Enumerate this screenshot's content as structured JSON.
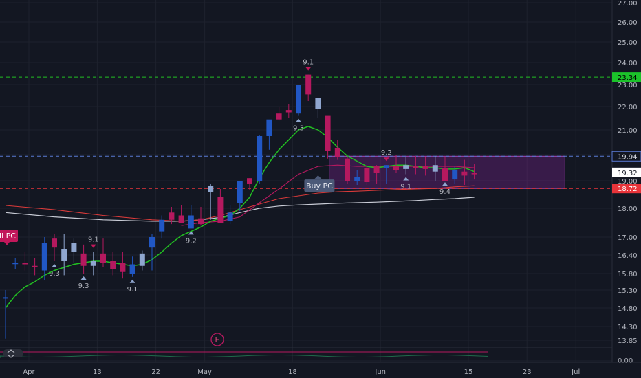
{
  "chart_data": {
    "type": "candlestick",
    "title": "",
    "ylim": [
      13.55,
      27.3
    ],
    "y_ticks": [
      "27.00",
      "26.00",
      "25.00",
      "24.00",
      "23.00",
      "22.00",
      "21.00",
      "20.00",
      "19.00",
      "18.00",
      "17.00",
      "16.40",
      "15.80",
      "15.30",
      "14.80",
      "14.30",
      "13.85"
    ],
    "y_tick_values": [
      27.0,
      26.0,
      25.0,
      24.0,
      23.0,
      22.0,
      21.0,
      20.0,
      19.0,
      18.0,
      17.0,
      16.4,
      15.8,
      15.3,
      14.8,
      14.3,
      13.85
    ],
    "x_ticks": [
      "Apr",
      "13",
      "22",
      "May",
      "18",
      "Jun",
      "15",
      "23",
      "Jul"
    ],
    "x_tick_positions": [
      0,
      7,
      13,
      18,
      27,
      36,
      45,
      51,
      56
    ],
    "candles": [
      {
        "i": 0,
        "o": 15.1,
        "h": 15.3,
        "l": 13.9,
        "c": 15.1,
        "color": "blue"
      },
      {
        "i": 1,
        "o": 16.15,
        "h": 16.3,
        "l": 15.95,
        "c": 16.15,
        "color": "blue"
      },
      {
        "i": 2,
        "o": 16.1,
        "h": 16.5,
        "l": 15.9,
        "c": 16.15,
        "color": "pink"
      },
      {
        "i": 3,
        "o": 16.05,
        "h": 16.3,
        "l": 15.75,
        "c": 16.0,
        "color": "pink"
      },
      {
        "i": 4,
        "o": 15.9,
        "h": 17.0,
        "l": 15.6,
        "c": 16.8,
        "color": "blue"
      },
      {
        "i": 5,
        "o": 16.95,
        "h": 17.1,
        "l": 16.2,
        "c": 16.65,
        "color": "pink"
      },
      {
        "i": 6,
        "o": 16.2,
        "h": 17.1,
        "l": 15.75,
        "c": 16.6,
        "color": "lightblue"
      },
      {
        "i": 7,
        "o": 16.5,
        "h": 16.95,
        "l": 16.15,
        "c": 16.8,
        "color": "lightblue"
      },
      {
        "i": 8,
        "o": 16.45,
        "h": 16.75,
        "l": 15.8,
        "c": 16.05,
        "color": "pink"
      },
      {
        "i": 9,
        "o": 16.2,
        "h": 16.5,
        "l": 15.75,
        "c": 16.05,
        "color": "lightblue"
      },
      {
        "i": 10,
        "o": 16.45,
        "h": 16.95,
        "l": 16.0,
        "c": 16.15,
        "color": "pink"
      },
      {
        "i": 11,
        "o": 16.2,
        "h": 16.5,
        "l": 15.75,
        "c": 15.95,
        "color": "pink"
      },
      {
        "i": 12,
        "o": 16.15,
        "h": 16.5,
        "l": 15.65,
        "c": 15.85,
        "color": "pink"
      },
      {
        "i": 13,
        "o": 15.8,
        "h": 16.35,
        "l": 15.7,
        "c": 16.1,
        "color": "blue"
      },
      {
        "i": 14,
        "o": 16.05,
        "h": 16.55,
        "l": 15.9,
        "c": 16.45,
        "color": "lightblue"
      },
      {
        "i": 15,
        "o": 16.65,
        "h": 17.1,
        "l": 15.9,
        "c": 17.0,
        "color": "blue"
      },
      {
        "i": 16,
        "o": 17.2,
        "h": 17.75,
        "l": 16.95,
        "c": 17.6,
        "color": "blue"
      },
      {
        "i": 17,
        "o": 17.6,
        "h": 18.05,
        "l": 17.45,
        "c": 17.85,
        "color": "pink"
      },
      {
        "i": 18,
        "o": 17.75,
        "h": 18.1,
        "l": 17.5,
        "c": 17.5,
        "color": "pink"
      },
      {
        "i": 19,
        "o": 17.3,
        "h": 18.1,
        "l": 17.3,
        "c": 17.75,
        "color": "blue"
      },
      {
        "i": 20,
        "o": 17.65,
        "h": 18.05,
        "l": 17.4,
        "c": 17.45,
        "color": "pink"
      },
      {
        "i": 21,
        "o": 18.8,
        "h": 18.9,
        "l": 17.6,
        "c": 18.6,
        "color": "lightblue"
      },
      {
        "i": 22,
        "o": 18.4,
        "h": 18.7,
        "l": 17.5,
        "c": 17.5,
        "color": "pink"
      },
      {
        "i": 23,
        "o": 17.55,
        "h": 18.1,
        "l": 17.45,
        "c": 17.85,
        "color": "blue"
      },
      {
        "i": 24,
        "o": 18.2,
        "h": 19.0,
        "l": 17.9,
        "c": 19.0,
        "color": "blue"
      },
      {
        "i": 25,
        "o": 18.9,
        "h": 19.1,
        "l": 18.65,
        "c": 19.1,
        "color": "pink"
      },
      {
        "i": 26,
        "o": 19.0,
        "h": 20.8,
        "l": 18.9,
        "c": 20.75,
        "color": "blue"
      },
      {
        "i": 27,
        "o": 20.75,
        "h": 21.4,
        "l": 20.2,
        "c": 21.45,
        "color": "blue"
      },
      {
        "i": 28,
        "o": 21.45,
        "h": 22.0,
        "l": 21.4,
        "c": 21.7,
        "color": "pink"
      },
      {
        "i": 29,
        "o": 21.75,
        "h": 22.1,
        "l": 21.5,
        "c": 21.85,
        "color": "pink"
      },
      {
        "i": 30,
        "o": 21.7,
        "h": 22.9,
        "l": 21.6,
        "c": 23.0,
        "color": "blue"
      },
      {
        "i": 31,
        "o": 23.45,
        "h": 23.45,
        "l": 22.25,
        "c": 22.55,
        "color": "pink"
      },
      {
        "i": 32,
        "o": 21.9,
        "h": 22.4,
        "l": 21.5,
        "c": 22.4,
        "color": "lightblue"
      },
      {
        "i": 33,
        "o": 21.6,
        "h": 21.55,
        "l": 19.85,
        "c": 20.15,
        "color": "pink"
      },
      {
        "i": 34,
        "o": 20.25,
        "h": 20.6,
        "l": 19.8,
        "c": 19.9,
        "color": "pink"
      },
      {
        "i": 35,
        "o": 19.85,
        "h": 19.9,
        "l": 18.9,
        "c": 19.0,
        "color": "pink"
      },
      {
        "i": 36,
        "o": 19.0,
        "h": 19.4,
        "l": 18.85,
        "c": 19.15,
        "color": "blue"
      },
      {
        "i": 37,
        "o": 19.5,
        "h": 19.6,
        "l": 18.85,
        "c": 18.95,
        "color": "pink"
      },
      {
        "i": 38,
        "o": 19.55,
        "h": 19.6,
        "l": 18.9,
        "c": 19.3,
        "color": "pink"
      },
      {
        "i": 39,
        "o": 19.5,
        "h": 19.6,
        "l": 18.9,
        "c": 19.6,
        "color": "blue"
      },
      {
        "i": 40,
        "o": 19.55,
        "h": 20.0,
        "l": 19.3,
        "c": 19.4,
        "color": "pink"
      },
      {
        "i": 41,
        "o": 19.45,
        "h": 19.9,
        "l": 19.25,
        "c": 19.6,
        "color": "lightblue"
      },
      {
        "i": 42,
        "o": 19.55,
        "h": 19.95,
        "l": 19.25,
        "c": 19.55,
        "color": "pink"
      },
      {
        "i": 43,
        "o": 19.55,
        "h": 19.9,
        "l": 19.2,
        "c": 19.45,
        "color": "pink"
      },
      {
        "i": 44,
        "o": 19.35,
        "h": 19.95,
        "l": 19.0,
        "c": 19.6,
        "color": "lightblue"
      },
      {
        "i": 45,
        "o": 19.5,
        "h": 19.9,
        "l": 19.05,
        "c": 19.0,
        "color": "pink"
      },
      {
        "i": 46,
        "o": 19.05,
        "h": 19.55,
        "l": 18.9,
        "c": 19.4,
        "color": "blue"
      },
      {
        "i": 47,
        "o": 19.35,
        "h": 19.8,
        "l": 18.85,
        "c": 19.2,
        "color": "pink"
      },
      {
        "i": 48,
        "o": 19.3,
        "h": 19.65,
        "l": 19.05,
        "c": 19.25,
        "color": "pink"
      }
    ],
    "ma_green": [
      [
        0,
        14.8
      ],
      [
        1,
        15.15
      ],
      [
        2,
        15.4
      ],
      [
        3,
        15.55
      ],
      [
        4,
        15.75
      ],
      [
        5,
        15.9
      ],
      [
        6,
        16.0
      ],
      [
        7,
        16.1
      ],
      [
        8,
        16.15
      ],
      [
        9,
        16.2
      ],
      [
        10,
        16.2
      ],
      [
        11,
        16.15
      ],
      [
        12,
        16.1
      ],
      [
        13,
        16.05
      ],
      [
        14,
        16.1
      ],
      [
        15,
        16.25
      ],
      [
        16,
        16.5
      ],
      [
        17,
        16.8
      ],
      [
        18,
        17.05
      ],
      [
        19,
        17.2
      ],
      [
        20,
        17.35
      ],
      [
        21,
        17.55
      ],
      [
        22,
        17.65
      ],
      [
        23,
        17.75
      ],
      [
        24,
        18.0
      ],
      [
        25,
        18.4
      ],
      [
        26,
        19.1
      ],
      [
        27,
        19.7
      ],
      [
        28,
        20.2
      ],
      [
        29,
        20.6
      ],
      [
        30,
        21.0
      ],
      [
        31,
        21.15
      ],
      [
        32,
        21.0
      ],
      [
        33,
        20.7
      ],
      [
        34,
        20.3
      ],
      [
        35,
        19.95
      ],
      [
        36,
        19.75
      ],
      [
        37,
        19.55
      ],
      [
        38,
        19.5
      ],
      [
        39,
        19.55
      ],
      [
        40,
        19.6
      ],
      [
        41,
        19.6
      ],
      [
        42,
        19.55
      ],
      [
        43,
        19.5
      ],
      [
        44,
        19.5
      ],
      [
        45,
        19.45
      ],
      [
        46,
        19.45
      ],
      [
        47,
        19.5
      ],
      [
        48,
        19.35
      ]
    ],
    "ma_pink": [
      [
        18,
        17.4
      ],
      [
        20,
        17.5
      ],
      [
        22,
        17.55
      ],
      [
        24,
        17.7
      ],
      [
        26,
        18.2
      ],
      [
        28,
        18.7
      ],
      [
        30,
        19.25
      ],
      [
        32,
        19.55
      ],
      [
        34,
        19.6
      ],
      [
        36,
        19.55
      ],
      [
        38,
        19.55
      ],
      [
        40,
        19.55
      ],
      [
        42,
        19.55
      ],
      [
        44,
        19.55
      ],
      [
        46,
        19.55
      ],
      [
        48,
        19.5
      ]
    ],
    "ma_red": [
      [
        0,
        18.1
      ],
      [
        5,
        17.95
      ],
      [
        10,
        17.75
      ],
      [
        15,
        17.6
      ],
      [
        18,
        17.55
      ],
      [
        20,
        17.6
      ],
      [
        22,
        17.75
      ],
      [
        24,
        17.95
      ],
      [
        26,
        18.15
      ],
      [
        28,
        18.35
      ],
      [
        30,
        18.45
      ],
      [
        32,
        18.55
      ],
      [
        34,
        18.6
      ],
      [
        36,
        18.62
      ],
      [
        38,
        18.65
      ],
      [
        40,
        18.68
      ],
      [
        42,
        18.7
      ],
      [
        44,
        18.72
      ],
      [
        46,
        18.78
      ],
      [
        48,
        18.82
      ]
    ],
    "ma_white": [
      [
        0,
        17.85
      ],
      [
        5,
        17.7
      ],
      [
        10,
        17.6
      ],
      [
        15,
        17.55
      ],
      [
        18,
        17.55
      ],
      [
        20,
        17.6
      ],
      [
        22,
        17.68
      ],
      [
        24,
        17.85
      ],
      [
        26,
        18.0
      ],
      [
        28,
        18.08
      ],
      [
        30,
        18.12
      ],
      [
        32,
        18.15
      ],
      [
        34,
        18.18
      ],
      [
        36,
        18.2
      ],
      [
        38,
        18.22
      ],
      [
        40,
        18.25
      ],
      [
        42,
        18.28
      ],
      [
        44,
        18.32
      ],
      [
        46,
        18.35
      ],
      [
        48,
        18.4
      ]
    ],
    "hlines": [
      {
        "value": 23.34,
        "label": "23.34",
        "color": "#22c022",
        "bg": "#1bc22a",
        "fg": "#000000"
      },
      {
        "value": 19.94,
        "label": "19.94",
        "color": "#5b7bd5",
        "bg": "#131722",
        "fg": "#d1d4dc"
      },
      {
        "value": 18.72,
        "label": "18.72",
        "color": "#e8343a",
        "bg": "#e8343a",
        "fg": "#ffffff"
      }
    ],
    "current_price": {
      "value": 19.32,
      "label": "19.32"
    },
    "zone": {
      "x0": 33,
      "x1": 57,
      "y0": 18.72,
      "y1": 19.94
    },
    "annotations": [
      {
        "text": "9.1",
        "i": 9,
        "side": "above",
        "arrow": "down"
      },
      {
        "text": "9.3",
        "i": 5,
        "side": "below",
        "arrow": "up"
      },
      {
        "text": "9.3",
        "i": 8,
        "side": "below",
        "arrow": "up"
      },
      {
        "text": "9.1",
        "i": 13,
        "side": "below",
        "arrow": "up"
      },
      {
        "text": "9.2",
        "i": 19,
        "side": "below",
        "arrow": "up"
      },
      {
        "text": "9.1",
        "i": 31,
        "side": "above",
        "arrow": "down"
      },
      {
        "text": "9.3",
        "i": 30,
        "side": "below",
        "arrow": "up"
      },
      {
        "text": "9.2",
        "i": 39,
        "side": "above",
        "arrow": "down"
      },
      {
        "text": "9.1",
        "i": 41,
        "side": "below",
        "arrow": "up"
      },
      {
        "text": "9.4",
        "i": 45,
        "side": "below",
        "arrow": "up"
      }
    ],
    "labels": [
      {
        "text": "Buy PC",
        "kind": "buy",
        "i": 32
      },
      {
        "text": "ll PC",
        "kind": "sell",
        "i": 0
      }
    ],
    "earnings_badge": "E",
    "indicator_axis_label": "0.00"
  },
  "colors": {
    "background": "#131722",
    "grid": "#1e222d",
    "blue": "#2157c4",
    "lightblue": "#8fa6cf",
    "pink": "#b5195f",
    "ma_green": "#22c022",
    "ma_pink": "#b5195f",
    "ma_red": "#d83a3a",
    "ma_white": "#c9ccd6"
  }
}
